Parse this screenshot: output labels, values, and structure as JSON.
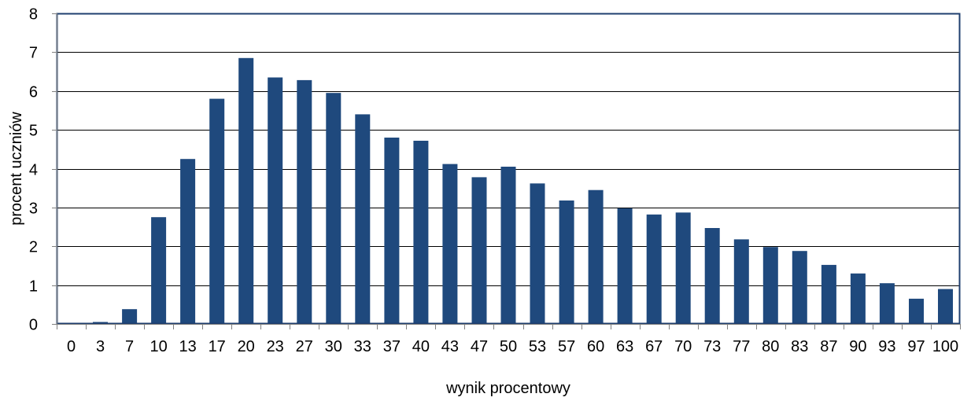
{
  "chart_data": {
    "type": "bar",
    "title": "",
    "xlabel": "wynik procentowy",
    "ylabel": "procent uczniów",
    "ylim": [
      0,
      8
    ],
    "yticks": [
      0,
      1,
      2,
      3,
      4,
      5,
      6,
      7,
      8
    ],
    "grid": true,
    "legend": "none",
    "categories": [
      "0",
      "3",
      "7",
      "10",
      "13",
      "17",
      "20",
      "23",
      "27",
      "30",
      "33",
      "37",
      "40",
      "43",
      "47",
      "50",
      "53",
      "57",
      "60",
      "63",
      "67",
      "70",
      "73",
      "77",
      "80",
      "83",
      "87",
      "90",
      "93",
      "97",
      "100"
    ],
    "values": [
      0,
      0.05,
      0.38,
      2.75,
      4.25,
      5.8,
      6.85,
      6.35,
      6.28,
      5.95,
      5.4,
      4.8,
      4.72,
      4.12,
      3.78,
      4.05,
      3.62,
      3.18,
      3.45,
      2.98,
      2.82,
      2.87,
      2.47,
      2.18,
      1.98,
      1.88,
      1.52,
      1.3,
      1.05,
      0.65,
      0.9
    ],
    "colors": {
      "bar": "#1F497D",
      "plot_border": "#1F3F6F",
      "grid": "#000000",
      "axis": "#808080"
    }
  }
}
